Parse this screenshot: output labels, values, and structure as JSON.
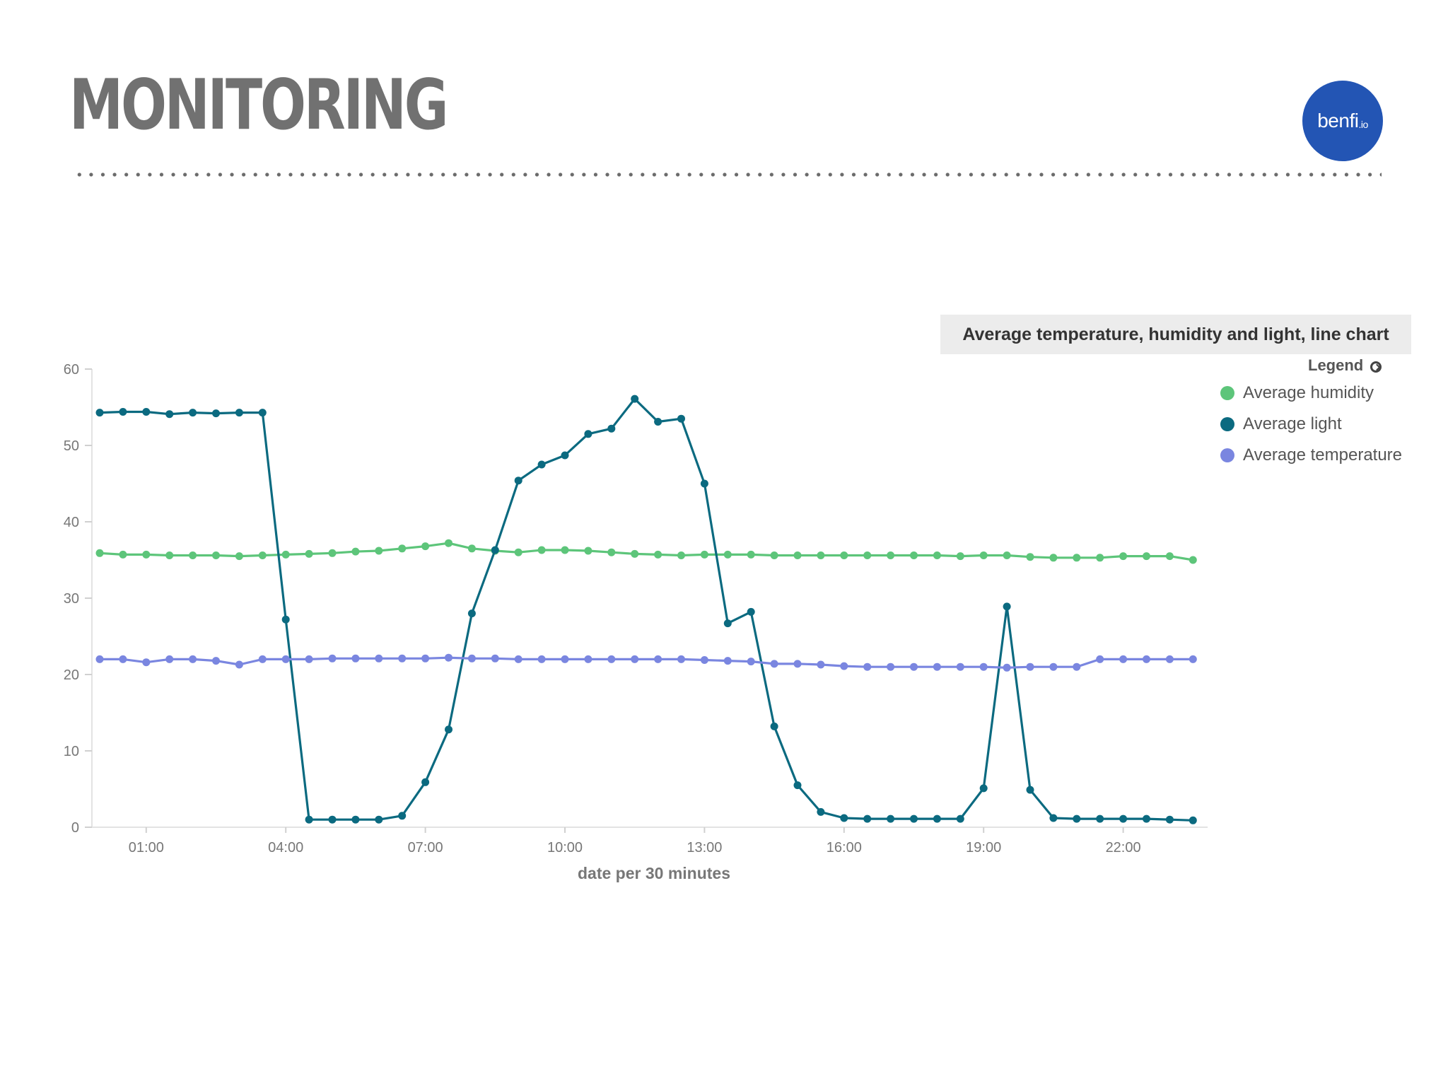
{
  "slide": {
    "title": "MONITORING",
    "logo_text": "benfi",
    "logo_suffix": ".io",
    "logo_color": "#2355b4"
  },
  "chart_data": {
    "type": "line",
    "title": "Average temperature, humidity and light, line chart",
    "xlabel": "date per 30 minutes",
    "ylabel": "",
    "ylim": [
      0,
      60
    ],
    "yticks": [
      0,
      10,
      20,
      30,
      40,
      50,
      60
    ],
    "xticks": [
      "01:00",
      "04:00",
      "07:00",
      "10:00",
      "13:00",
      "16:00",
      "19:00",
      "22:00"
    ],
    "x_start": "00:00",
    "x_step_minutes": 30,
    "grid": false,
    "legend": {
      "title": "Legend",
      "placement": "top-right"
    },
    "series": [
      {
        "name": "Average humidity",
        "color": "#5dc57a",
        "values": [
          35.9,
          35.7,
          35.7,
          35.6,
          35.6,
          35.6,
          35.5,
          35.6,
          35.7,
          35.8,
          35.9,
          36.1,
          36.2,
          36.5,
          36.8,
          37.2,
          36.5,
          36.2,
          36.0,
          36.3,
          36.3,
          36.2,
          36.0,
          35.8,
          35.7,
          35.6,
          35.7,
          35.7,
          35.7,
          35.6,
          35.6,
          35.6,
          35.6,
          35.6,
          35.6,
          35.6,
          35.6,
          35.5,
          35.6,
          35.6,
          35.4,
          35.3,
          35.3,
          35.3,
          35.5,
          35.5,
          35.5,
          35.0
        ]
      },
      {
        "name": "Average light",
        "color": "#0b6a80",
        "values": [
          54.3,
          54.4,
          54.4,
          54.1,
          54.3,
          54.2,
          54.3,
          54.3,
          27.2,
          1.0,
          1.0,
          1.0,
          1.0,
          1.5,
          5.9,
          12.8,
          28.0,
          36.3,
          45.4,
          47.5,
          48.7,
          51.5,
          52.2,
          56.1,
          53.1,
          53.5,
          45.0,
          26.7,
          28.2,
          13.2,
          5.5,
          2.0,
          1.2,
          1.1,
          1.1,
          1.1,
          1.1,
          1.1,
          5.1,
          28.9,
          4.9,
          1.2,
          1.1,
          1.1,
          1.1,
          1.1,
          1.0,
          0.9
        ]
      },
      {
        "name": "Average temperature",
        "color": "#7a86e0",
        "values": [
          22.0,
          22.0,
          21.6,
          22.0,
          22.0,
          21.8,
          21.3,
          22.0,
          22.0,
          22.0,
          22.1,
          22.1,
          22.1,
          22.1,
          22.1,
          22.2,
          22.1,
          22.1,
          22.0,
          22.0,
          22.0,
          22.0,
          22.0,
          22.0,
          22.0,
          22.0,
          21.9,
          21.8,
          21.7,
          21.4,
          21.4,
          21.3,
          21.1,
          21.0,
          21.0,
          21.0,
          21.0,
          21.0,
          21.0,
          20.9,
          21.0,
          21.0,
          21.0,
          22.0,
          22.0,
          22.0,
          22.0,
          22.0
        ]
      }
    ]
  }
}
